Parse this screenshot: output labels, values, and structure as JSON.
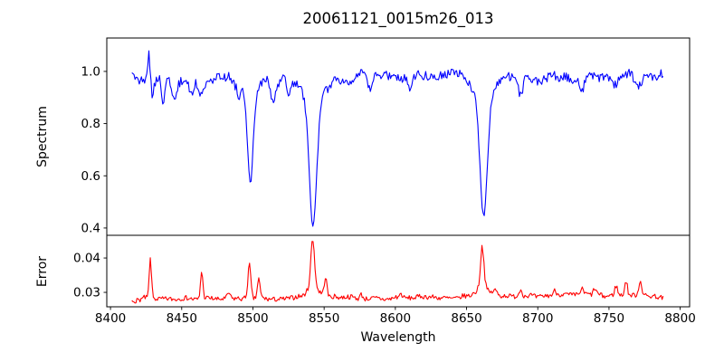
{
  "figure": {
    "title": "20061121_0015m26_013",
    "background": "#ffffff",
    "text_color": "#000000",
    "spine_color": "#000000"
  },
  "chart_data": [
    {
      "id": "spectrum",
      "type": "line",
      "line_color": "#0000ff",
      "ylabel": "Spectrum",
      "x_range": [
        8415,
        8788
      ],
      "xlim": [
        8397.4,
        8806.6
      ],
      "ylim": [
        0.372,
        1.128
      ],
      "n_points": 500,
      "yticks": [
        1.0,
        0.8,
        0.6,
        0.4
      ],
      "ytick_labels": [
        "1.0",
        "0.8",
        "0.6",
        "0.4"
      ],
      "grid": false,
      "legend": null,
      "continuum": [
        [
          8415,
          0.97
        ],
        [
          8450,
          0.968
        ],
        [
          8480,
          0.972
        ],
        [
          8520,
          0.972
        ],
        [
          8560,
          0.978
        ],
        [
          8600,
          0.982
        ],
        [
          8640,
          0.988
        ],
        [
          8665,
          0.985
        ],
        [
          8700,
          0.975
        ],
        [
          8740,
          0.978
        ],
        [
          8788,
          0.99
        ]
      ],
      "noise": {
        "seed": 3,
        "white": 0.038,
        "smooth": 0.028,
        "smooth_step": 6,
        "feature_scale": 1
      },
      "features": [
        {
          "center": 8427.0,
          "amplitude": 0.105,
          "width": 0.9
        },
        {
          "center": 8429.5,
          "amplitude": -0.055,
          "width": 1.0
        },
        {
          "center": 8437,
          "amplitude": -0.08,
          "width": 1.2
        },
        {
          "center": 8445,
          "amplitude": -0.075,
          "width": 1.5
        },
        {
          "center": 8457,
          "amplitude": -0.055,
          "width": 1.5
        },
        {
          "center": 8464,
          "amplitude": -0.055,
          "width": 1.5
        },
        {
          "center": 8490,
          "amplitude": -0.045,
          "width": 1.5
        },
        {
          "center": 8498.2,
          "amplitude": -0.35,
          "width": 2.0
        },
        {
          "center": 8498,
          "amplitude": -0.05,
          "width": 6.0
        },
        {
          "center": 8514,
          "amplitude": -0.09,
          "width": 1.8
        },
        {
          "center": 8525,
          "amplitude": -0.045,
          "width": 1.5
        },
        {
          "center": 8542.2,
          "amplitude": -0.48,
          "width": 2.6
        },
        {
          "center": 8542,
          "amplitude": -0.085,
          "width": 8.0
        },
        {
          "center": 8582,
          "amplitude": -0.055,
          "width": 1.5
        },
        {
          "center": 8610,
          "amplitude": -0.04,
          "width": 1.5
        },
        {
          "center": 8662,
          "amplitude": -0.465,
          "width": 2.6
        },
        {
          "center": 8662,
          "amplitude": -0.075,
          "width": 8.0
        },
        {
          "center": 8688,
          "amplitude": -0.08,
          "width": 1.8
        },
        {
          "center": 8731,
          "amplitude": -0.055,
          "width": 1.5
        },
        {
          "center": 8755,
          "amplitude": -0.045,
          "width": 1.5
        },
        {
          "center": 8770,
          "amplitude": -0.055,
          "width": 2.0
        }
      ],
      "notable_absorption_lines": [
        8498,
        8542,
        8662
      ],
      "continuum_level_approx": 0.98,
      "line_depths_approx": {
        "8498": 0.58,
        "8542": 0.41,
        "8662": 0.44
      }
    },
    {
      "id": "error",
      "type": "line",
      "line_color": "#ff0000",
      "ylabel": "Error",
      "xlabel": "Wavelength",
      "x_range": [
        8415,
        8788
      ],
      "xlim": [
        8397.4,
        8806.6
      ],
      "ylim": [
        0.0258,
        0.0466
      ],
      "n_points": 520,
      "yticks": [
        0.04,
        0.03
      ],
      "ytick_labels": [
        "0.04",
        "0.03"
      ],
      "xticks": [
        8400,
        8450,
        8500,
        8550,
        8600,
        8650,
        8700,
        8750,
        8800
      ],
      "xtick_labels": [
        "8400",
        "8450",
        "8500",
        "8550",
        "8600",
        "8650",
        "8700",
        "8750",
        "8800"
      ],
      "grid": false,
      "legend": null,
      "continuum": [
        [
          8415,
          0.028
        ],
        [
          8450,
          0.0282
        ],
        [
          8520,
          0.0283
        ],
        [
          8600,
          0.0284
        ],
        [
          8680,
          0.0287
        ],
        [
          8740,
          0.0292
        ],
        [
          8770,
          0.029
        ],
        [
          8788,
          0.0285
        ]
      ],
      "noise": {
        "seed": 7,
        "white": 0.0014,
        "smooth": 0.0009,
        "smooth_step": 6,
        "feature_scale": 25
      },
      "features": [
        {
          "center": 8428,
          "amplitude": 0.0112,
          "width": 0.8
        },
        {
          "center": 8464,
          "amplitude": 0.0082,
          "width": 0.8
        },
        {
          "center": 8483,
          "amplitude": 0.0018,
          "width": 1.0
        },
        {
          "center": 8497.5,
          "amplitude": 0.0092,
          "width": 1.0
        },
        {
          "center": 8504,
          "amplitude": 0.0055,
          "width": 0.9
        },
        {
          "center": 8542,
          "amplitude": 0.014,
          "width": 1.3
        },
        {
          "center": 8542,
          "amplitude": 0.0028,
          "width": 5.0
        },
        {
          "center": 8551,
          "amplitude": 0.0055,
          "width": 0.9
        },
        {
          "center": 8576,
          "amplitude": 0.0014,
          "width": 1.0
        },
        {
          "center": 8604,
          "amplitude": 0.0012,
          "width": 1.0
        },
        {
          "center": 8661,
          "amplitude": 0.0118,
          "width": 1.2
        },
        {
          "center": 8661,
          "amplitude": 0.0028,
          "width": 5.0
        },
        {
          "center": 8670,
          "amplitude": 0.0018,
          "width": 1.5
        },
        {
          "center": 8688,
          "amplitude": 0.0018,
          "width": 1.0
        },
        {
          "center": 8712,
          "amplitude": 0.0012,
          "width": 1.0
        },
        {
          "center": 8731,
          "amplitude": 0.0014,
          "width": 1.0
        },
        {
          "center": 8740,
          "amplitude": 0.0018,
          "width": 1.0
        },
        {
          "center": 8755,
          "amplitude": 0.003,
          "width": 1.0
        },
        {
          "center": 8762,
          "amplitude": 0.0042,
          "width": 0.9
        },
        {
          "center": 8772,
          "amplitude": 0.004,
          "width": 1.0
        }
      ],
      "peak_values_approx": {
        "8428": 0.0395,
        "8464": 0.0365,
        "8498": 0.038,
        "8542": 0.0455,
        "8661": 0.0435
      },
      "baseline_approx": 0.0285
    }
  ]
}
